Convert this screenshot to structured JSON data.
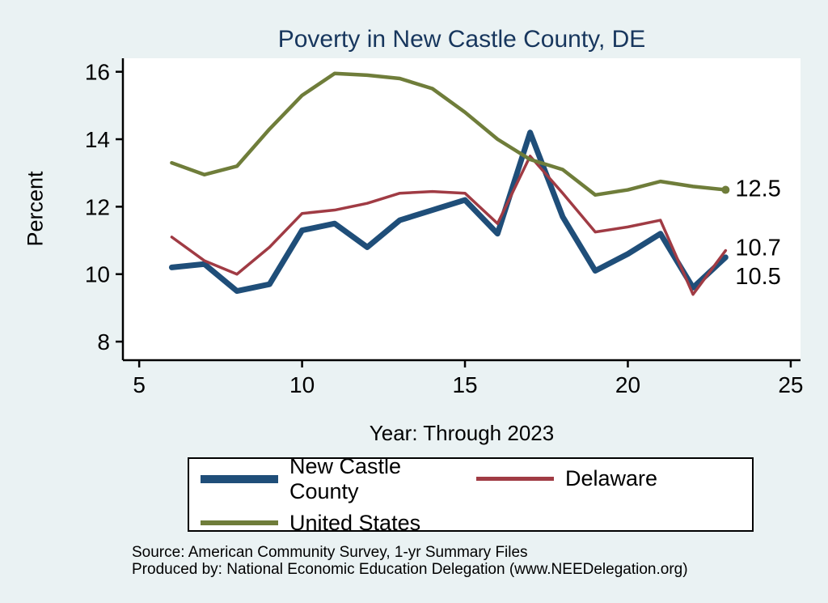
{
  "colors": {
    "background": "#eaf2f3",
    "plot_background": "#ffffff",
    "title": "#17365d",
    "axis": "#000000",
    "new_castle_county": "#1f4e79",
    "delaware": "#a03b44",
    "united_states": "#6f7d3a"
  },
  "chart_data": {
    "type": "line",
    "title": "Poverty in New Castle County, DE",
    "xlabel": "Year: Through 2023",
    "ylabel": "Percent",
    "xlim": [
      4.5,
      25.3
    ],
    "ylim": [
      7.45,
      16.4
    ],
    "xticks": [
      5,
      10,
      15,
      20,
      25
    ],
    "yticks": [
      8,
      10,
      12,
      14,
      16
    ],
    "grid": false,
    "legend_position": "bottom",
    "x": [
      6,
      7,
      8,
      9,
      10,
      11,
      12,
      13,
      14,
      15,
      16,
      17,
      18,
      19,
      20,
      21,
      22,
      23
    ],
    "series": [
      {
        "name": "New Castle County",
        "color": "#1f4e79",
        "width": 7,
        "values": [
          10.2,
          10.3,
          9.5,
          9.7,
          11.3,
          11.5,
          10.8,
          11.6,
          11.9,
          12.2,
          11.2,
          14.2,
          11.7,
          10.1,
          10.6,
          11.2,
          9.6,
          10.5
        ]
      },
      {
        "name": "Delaware",
        "color": "#a03b44",
        "width": 3.5,
        "values": [
          11.1,
          10.4,
          10.0,
          10.8,
          11.8,
          11.9,
          12.1,
          12.4,
          12.45,
          12.4,
          11.5,
          13.5,
          12.4,
          11.25,
          11.4,
          11.6,
          9.4,
          10.7
        ]
      },
      {
        "name": "United States",
        "color": "#6f7d3a",
        "width": 4.5,
        "end_marker": true,
        "values": [
          13.3,
          12.95,
          13.2,
          14.3,
          15.3,
          15.95,
          15.9,
          15.8,
          15.5,
          14.8,
          14.0,
          13.4,
          13.1,
          12.35,
          12.5,
          12.75,
          12.6,
          12.5
        ]
      }
    ],
    "end_labels": [
      {
        "text": "12.5",
        "value": 12.55
      },
      {
        "text": "10.7",
        "value": 10.8
      },
      {
        "text": "10.5",
        "value": 9.95
      }
    ]
  },
  "footer": {
    "source": "Source: American Community Survey, 1-yr Summary Files",
    "produced_by": "Produced by: National Economic Education Delegation (www.NEEDelegation.org)"
  }
}
